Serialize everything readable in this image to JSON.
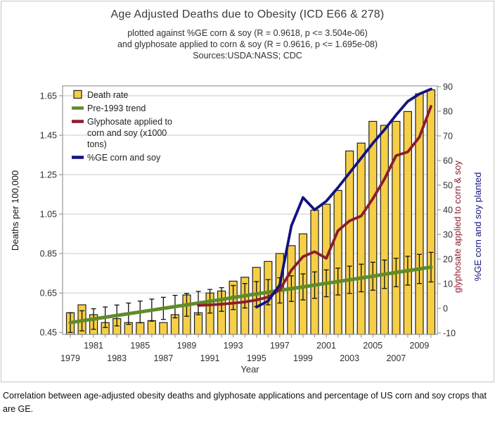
{
  "figure": {
    "title": "Age Adjusted Deaths due to Obesity (ICD E66 & 278)",
    "subtitle_line1": "plotted against %GE corn & soy (R = 0.9618, p <= 3.504e-06)",
    "subtitle_line2": "and glyphosate applied to corn & soy (R = 0.9616, p <= 1.695e-08)",
    "subtitle_line3": "Sources:USDA:NASS; CDC",
    "caption": "Correlation between age-adjusted obesity deaths and glyphosate applications and percentage of US corn and soy crops that are GE."
  },
  "colors": {
    "bar_fill": "#F6CF47",
    "bar_border": "#222222",
    "trend_green": "#5F8C28",
    "glyphosate_red": "#8C1C2C",
    "ge_navy": "#131380",
    "gridline": "#c9c9c9",
    "plot_border": "#9a9a9a",
    "tick_text": "#2e2e2e",
    "error_bar": "#111111"
  },
  "chart_data": {
    "type": "bar",
    "subtype": "dual-axis bar + lines",
    "x": [
      1979,
      1980,
      1981,
      1982,
      1983,
      1984,
      1985,
      1986,
      1987,
      1988,
      1989,
      1990,
      1991,
      1992,
      1993,
      1994,
      1995,
      1996,
      1997,
      1998,
      1999,
      2000,
      2001,
      2002,
      2003,
      2004,
      2005,
      2006,
      2007,
      2008,
      2009,
      2010
    ],
    "series": [
      {
        "name": "Death rate",
        "type": "bar",
        "axis": "left",
        "values": [
          0.55,
          0.59,
          0.54,
          0.5,
          0.52,
          0.5,
          0.5,
          0.51,
          0.5,
          0.54,
          0.64,
          0.55,
          0.65,
          0.66,
          0.71,
          0.73,
          0.78,
          0.81,
          0.85,
          0.89,
          0.95,
          1.07,
          1.1,
          1.17,
          1.37,
          1.41,
          1.52,
          1.5,
          1.52,
          1.57,
          1.66,
          1.68
        ]
      },
      {
        "name": "Pre-1993 trend",
        "type": "line",
        "axis": "left",
        "start_year": 1979,
        "values": [
          0.5,
          0.509,
          0.518,
          0.527,
          0.536,
          0.545,
          0.554,
          0.563,
          0.572,
          0.581,
          0.59,
          0.599,
          0.608,
          0.617,
          0.627,
          0.636,
          0.645,
          0.654,
          0.663,
          0.672,
          0.681,
          0.69,
          0.699,
          0.708,
          0.717,
          0.726,
          0.735,
          0.745,
          0.754,
          0.763,
          0.772,
          0.781
        ],
        "error": [
          0.05,
          0.051,
          0.052,
          0.052,
          0.053,
          0.054,
          0.055,
          0.056,
          0.056,
          0.057,
          0.058,
          0.059,
          0.06,
          0.06,
          0.061,
          0.062,
          0.063,
          0.064,
          0.064,
          0.065,
          0.066,
          0.067,
          0.068,
          0.068,
          0.069,
          0.07,
          0.071,
          0.072,
          0.072,
          0.073,
          0.074,
          0.075
        ]
      },
      {
        "name": "Glyphosate applied to corn and soy (x1000 tons)",
        "type": "line",
        "axis": "right",
        "start_year": 1990,
        "values": [
          1.2,
          1.4,
          1.7,
          2.1,
          2.6,
          3.4,
          4.6,
          7.5,
          15.5,
          21.0,
          23.0,
          20.3,
          31.5,
          35.5,
          37.5,
          44.5,
          52.5,
          62.0,
          63.5,
          69.5,
          82.0
        ]
      },
      {
        "name": "%GE corn and soy",
        "type": "line",
        "axis": "right",
        "start_year": 1995,
        "values": [
          0.5,
          3.0,
          9.5,
          33.5,
          45.0,
          40.0,
          43.5,
          49.0,
          55.0,
          61.0,
          67.0,
          72.5,
          78.5,
          84.0,
          87.0,
          89.0
        ]
      }
    ],
    "left_axis": {
      "label": "Deaths per 100,000",
      "min": 0.44,
      "max": 1.7,
      "ticks": [
        0.45,
        0.65,
        0.85,
        1.05,
        1.25,
        1.45,
        1.65
      ]
    },
    "right_axis": {
      "label_red": "glyphosate applied to corn & soy",
      "label_navy": "%GE corn and soy planted",
      "min": -10.57,
      "max": 90.29,
      "ticks": [
        -10,
        0,
        10,
        20,
        30,
        40,
        50,
        60,
        70,
        80,
        90
      ]
    },
    "x_axis": {
      "label": "Year",
      "labels_row_near": [
        "1981",
        "1985",
        "1989",
        "1993",
        "1997",
        "2001",
        "2005",
        "2009"
      ],
      "labels_row_far": [
        "1979",
        "1983",
        "1987",
        "1991",
        "1995",
        "1999",
        "2003",
        "2007"
      ]
    },
    "legend": {
      "position": "top-left",
      "items": [
        {
          "swatch": "box",
          "color_key": "bar_fill",
          "lines": [
            "Death rate"
          ]
        },
        {
          "swatch": "line",
          "color_key": "trend_green",
          "lines": [
            "Pre-1993 trend"
          ]
        },
        {
          "swatch": "line",
          "color_key": "glyphosate_red",
          "lines": [
            "Glyphosate applied to",
            "corn and soy (x1000",
            "tons)"
          ]
        },
        {
          "swatch": "line",
          "color_key": "ge_navy",
          "lines": [
            "%GE corn and soy"
          ]
        }
      ]
    }
  }
}
